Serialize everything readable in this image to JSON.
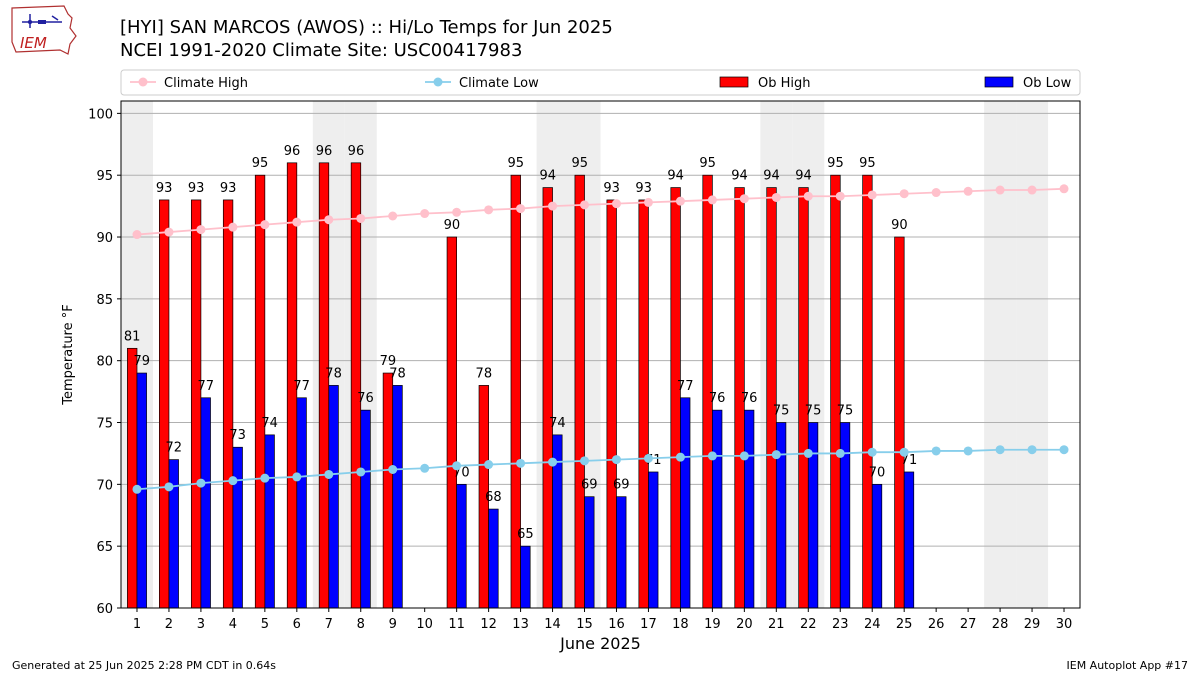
{
  "header": {
    "logo_text": "IEM",
    "title_line1": "[HYI] SAN MARCOS (AWOS) :: Hi/Lo Temps for Jun 2025",
    "title_line2": "NCEI 1991-2020 Climate Site: USC00417983"
  },
  "footer": {
    "left": "Generated at 25 Jun 2025 2:28 PM CDT in 0.64s",
    "right": "IEM Autoplot App #17"
  },
  "colors": {
    "ob_high": "#ff0000",
    "ob_low": "#0000ff",
    "climate_high": "#ffc0cb",
    "climate_low": "#87ceeb",
    "weekend_shade": "#eeeeee",
    "grid": "#b0b0b0"
  },
  "chart_data": {
    "type": "bar",
    "xlabel": "June 2025",
    "ylabel": "Temperature °F",
    "ylim": [
      60,
      101
    ],
    "yticks": [
      60,
      65,
      70,
      75,
      80,
      85,
      90,
      95,
      100
    ],
    "grid": "horizontal",
    "legend_placement": "top",
    "days": [
      1,
      2,
      3,
      4,
      5,
      6,
      7,
      8,
      9,
      10,
      11,
      12,
      13,
      14,
      15,
      16,
      17,
      18,
      19,
      20,
      21,
      22,
      23,
      24,
      25,
      26,
      27,
      28,
      29,
      30
    ],
    "shaded_days": [
      1,
      7,
      8,
      14,
      15,
      21,
      22,
      28,
      29
    ],
    "series": [
      {
        "name": "Climate High",
        "kind": "line",
        "values": [
          90.2,
          90.4,
          90.6,
          90.8,
          91.0,
          91.2,
          91.4,
          91.5,
          91.7,
          91.9,
          92.0,
          92.2,
          92.3,
          92.5,
          92.6,
          92.7,
          92.8,
          92.9,
          93.0,
          93.1,
          93.2,
          93.3,
          93.3,
          93.4,
          93.5,
          93.6,
          93.7,
          93.8,
          93.8,
          93.9
        ]
      },
      {
        "name": "Climate Low",
        "kind": "line",
        "values": [
          69.6,
          69.8,
          70.1,
          70.3,
          70.5,
          70.6,
          70.8,
          71.0,
          71.2,
          71.3,
          71.5,
          71.6,
          71.7,
          71.8,
          71.9,
          72.0,
          72.1,
          72.2,
          72.3,
          72.3,
          72.4,
          72.5,
          72.5,
          72.6,
          72.6,
          72.7,
          72.7,
          72.8,
          72.8,
          72.8
        ]
      },
      {
        "name": "Ob High",
        "kind": "bar",
        "values": [
          81,
          93,
          93,
          93,
          95,
          96,
          96,
          96,
          79,
          null,
          90,
          78,
          95,
          94,
          95,
          93,
          93,
          94,
          95,
          94,
          94,
          94,
          95,
          95,
          90,
          null,
          null,
          null,
          null,
          null
        ]
      },
      {
        "name": "Ob Low",
        "kind": "bar",
        "values": [
          79,
          72,
          77,
          73,
          74,
          77,
          78,
          76,
          78,
          null,
          70,
          68,
          65,
          74,
          69,
          69,
          71,
          77,
          76,
          76,
          75,
          75,
          75,
          70,
          71,
          null,
          null,
          null,
          null,
          null
        ]
      }
    ]
  }
}
